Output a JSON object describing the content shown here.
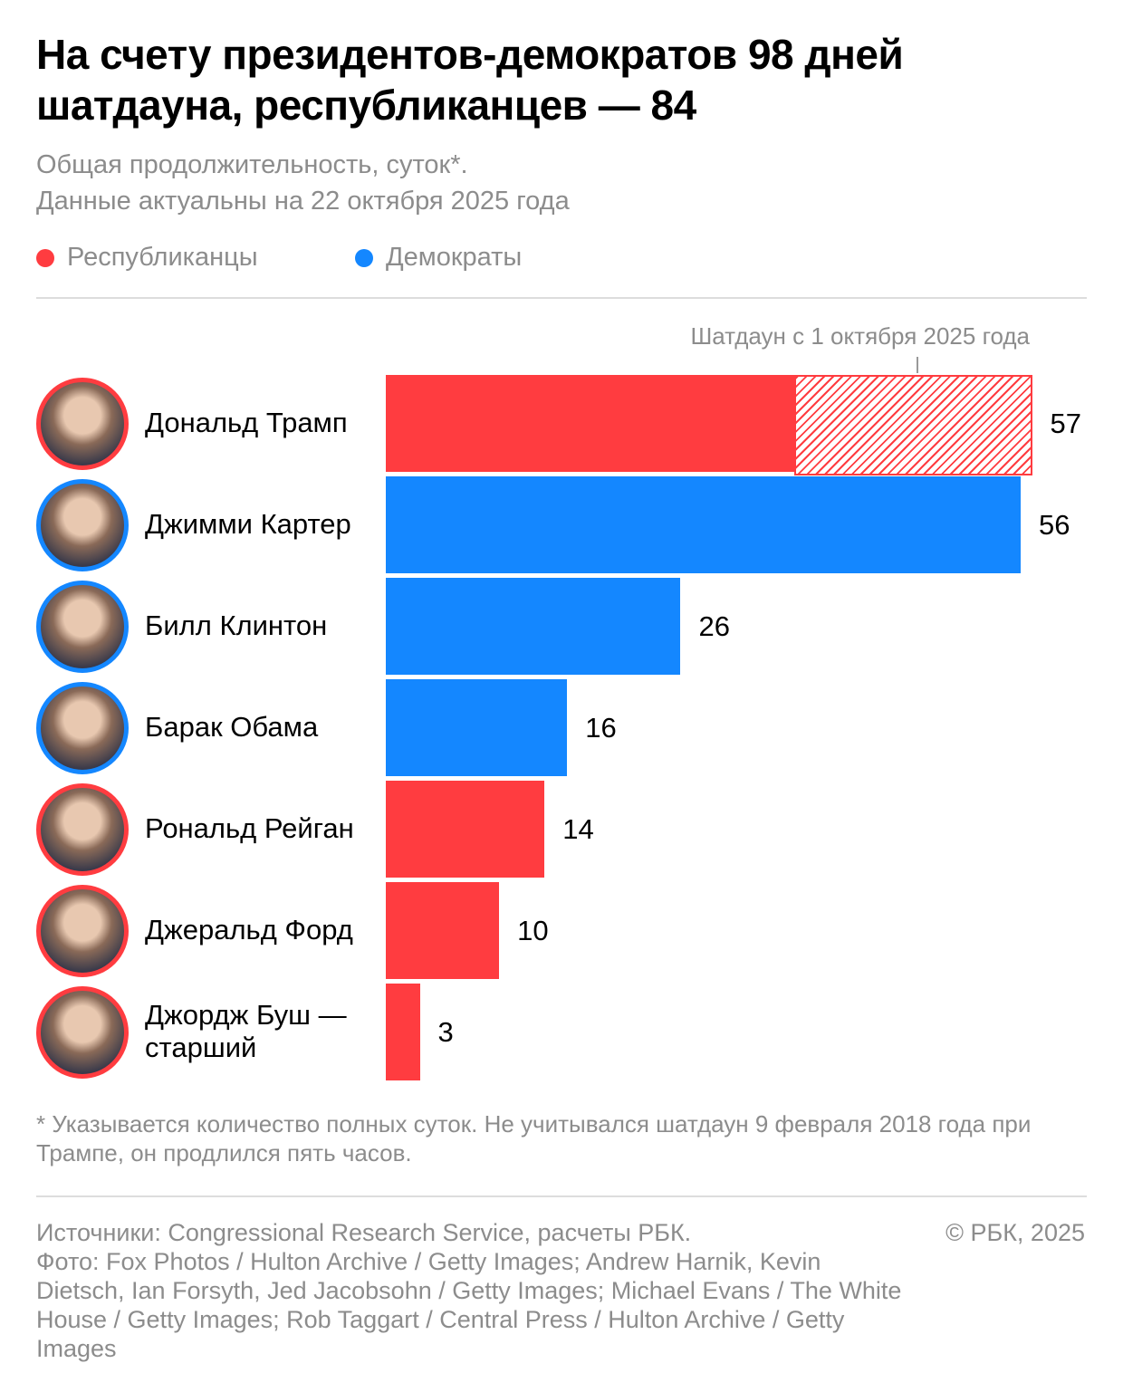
{
  "title": "На счету президентов-демократов 98 дней шатдауна, республиканцев — 84",
  "subtitle": [
    "Общая продолжительность, суток*.",
    "Данные актуальны на 22 октября 2025 года"
  ],
  "colors": {
    "republican": "#ff3c40",
    "democrat": "#1487ff"
  },
  "chart_data": {
    "type": "bar",
    "orientation": "horizontal",
    "legend": [
      {
        "name": "Республиканцы",
        "color": "#ff3c40"
      },
      {
        "name": "Демократы",
        "color": "#1487ff"
      }
    ],
    "legend_placement": "top-left",
    "annotation": "Шатдаун с 1 октября 2025 года",
    "categories": [
      "Дональд Трамп",
      "Джимми Картер",
      "Билл Клинтон",
      "Барак Обама",
      "Рональд Рейган",
      "Джеральд Форд",
      "Джордж Буш — старший"
    ],
    "party": [
      "republican",
      "democrat",
      "democrat",
      "democrat",
      "republican",
      "republican",
      "republican"
    ],
    "values": [
      57,
      56,
      26,
      16,
      14,
      10,
      3
    ],
    "trump_breakdown": {
      "previous": 36,
      "since_oct_1_2025": 21
    },
    "grid": false
  },
  "footnote": "* Указывается количество полных суток. Не учитывался шатдаун 9 февраля 2018 года при Трампе, он продлился пять часов.",
  "sources": "Источники: Congressional Research Service, расчеты РБК.",
  "photo": "Фото: Fox Photos / Hulton Archive / Getty Images; Andrew Harnik, Kevin Dietsch, Ian Forsyth, Jed Jacobsohn / Getty Images; Michael Evans / The White House / Getty Images; Rob Taggart / Central Press / Hulton Archive / Getty Images",
  "copyright": "© РБК, 2025"
}
